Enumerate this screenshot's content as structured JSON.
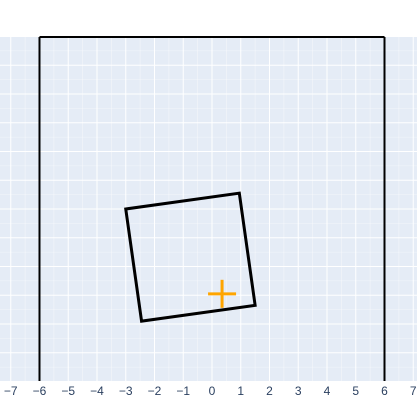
{
  "chart_data": {
    "type": "scatter",
    "title": "",
    "xlabel": "",
    "ylabel": "",
    "xlim": [
      -7,
      7
    ],
    "xticks": [
      -7,
      -6,
      -5,
      -4,
      -3,
      -2,
      -1,
      0,
      1,
      2,
      3,
      4,
      5,
      6,
      7
    ],
    "ylim": [
      -6,
      6
    ],
    "grid": true,
    "legend": "none",
    "colors": {
      "plot_background": "#e5ecf6",
      "grid": "#ffffff",
      "shapes": "#000000",
      "marker": "#ffa500",
      "tick_text": "#2a3f5f"
    },
    "shapes": [
      {
        "name": "outer-boundary",
        "kind": "line-pair",
        "x": [
          -6,
          6
        ],
        "ylim": [
          -6,
          6
        ]
      },
      {
        "name": "rotated-square",
        "kind": "polygon",
        "points": [
          [
            -3.0,
            0.0
          ],
          [
            0.95,
            0.55
          ],
          [
            1.5,
            -3.35
          ],
          [
            -2.45,
            -3.9
          ]
        ]
      }
    ],
    "marker": {
      "symbol": "cross",
      "x": 0.35,
      "y": -2.95
    }
  }
}
